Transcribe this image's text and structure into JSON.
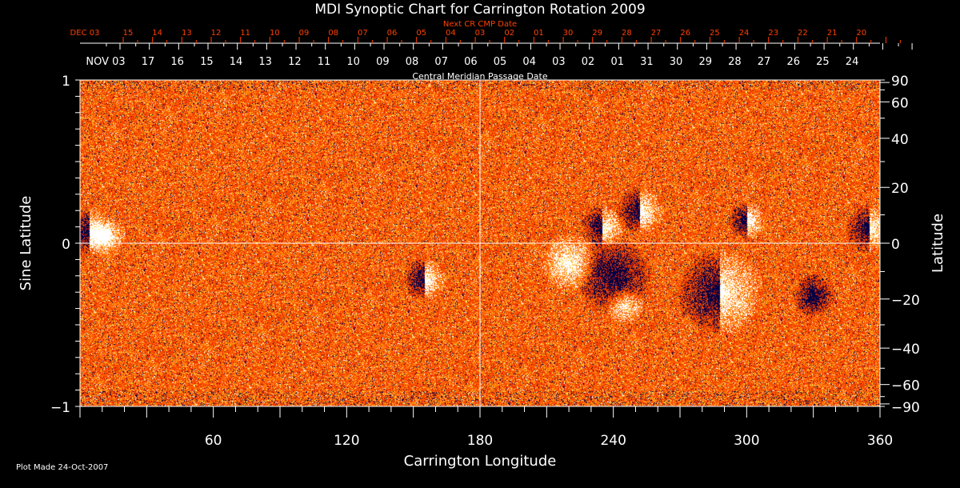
{
  "chart_data": {
    "type": "heatmap",
    "title": "MDI Synoptic Chart for Carrington Rotation 2009",
    "xlabel": "Carrington Longitude",
    "ylabel_left": "Sine Latitude",
    "ylabel_right": "Latitude",
    "top_axis_label": "Central Meridian Passage Date",
    "next_cr_label": "Next CR CMP Date",
    "xlim": [
      0,
      360
    ],
    "ylim": [
      -1,
      1
    ],
    "x_ticks": [
      "60",
      "120",
      "180",
      "240",
      "300",
      "360"
    ],
    "x_tick_values": [
      60,
      120,
      180,
      240,
      300,
      360
    ],
    "y_left_ticks": [
      {
        "v": 1,
        "label": "1"
      },
      {
        "v": 0,
        "label": "0"
      },
      {
        "v": -1,
        "label": "−1"
      }
    ],
    "y_right_ticks": [
      {
        "lat": 90,
        "label": "90"
      },
      {
        "lat": 60,
        "label": "60"
      },
      {
        "lat": 40,
        "label": "40"
      },
      {
        "lat": 20,
        "label": "20"
      },
      {
        "lat": 0,
        "label": "0"
      },
      {
        "lat": -20,
        "label": "−20"
      },
      {
        "lat": -40,
        "label": "−40"
      },
      {
        "lat": -60,
        "label": "−60"
      },
      {
        "lat": -90,
        "label": "−90"
      }
    ],
    "cmp_dates": [
      "NOV 03",
      "17",
      "16",
      "15",
      "14",
      "13",
      "12",
      "11",
      "10",
      "09",
      "08",
      "07",
      "06",
      "05",
      "04",
      "03",
      "02",
      "01",
      "31",
      "30",
      "29",
      "28",
      "27",
      "26",
      "25",
      "24"
    ],
    "next_cr_dates": [
      "DEC 03",
      "15",
      "14",
      "13",
      "12",
      "11",
      "10",
      "09",
      "08",
      "07",
      "06",
      "05",
      "04",
      "03",
      "02",
      "01",
      "30",
      "29",
      "28",
      "27",
      "26",
      "25",
      "24",
      "23",
      "22",
      "21",
      "20"
    ],
    "gridlines": {
      "longitude": 180,
      "sine_latitude": 0
    },
    "colors": {
      "background": "#000000",
      "field": "#ff5a00",
      "positive": "#ffffff",
      "negative": "#000040",
      "next_cr": "#ff4000"
    },
    "features": [
      {
        "lon": 4,
        "sinlat": 0.07,
        "polarity": "mixed",
        "size": 1.0
      },
      {
        "lon": 12,
        "sinlat": 0.04,
        "polarity": "positive",
        "size": 0.8
      },
      {
        "lon": 155,
        "sinlat": -0.22,
        "polarity": "mixed",
        "size": 0.9
      },
      {
        "lon": 235,
        "sinlat": 0.1,
        "polarity": "mixed",
        "size": 0.9
      },
      {
        "lon": 252,
        "sinlat": 0.2,
        "polarity": "mixed",
        "size": 1.0
      },
      {
        "lon": 240,
        "sinlat": -0.2,
        "polarity": "negative",
        "size": 1.6
      },
      {
        "lon": 245,
        "sinlat": -0.38,
        "polarity": "positive",
        "size": 0.8
      },
      {
        "lon": 288,
        "sinlat": -0.3,
        "polarity": "mixed",
        "size": 1.8
      },
      {
        "lon": 300,
        "sinlat": 0.14,
        "polarity": "mixed",
        "size": 0.8
      },
      {
        "lon": 355,
        "sinlat": 0.09,
        "polarity": "mixed",
        "size": 1.0
      },
      {
        "lon": 220,
        "sinlat": -0.12,
        "polarity": "positive",
        "size": 1.2
      },
      {
        "lon": 330,
        "sinlat": -0.32,
        "polarity": "negative",
        "size": 0.9
      }
    ]
  },
  "footer": {
    "plot_made": "Plot Made 24-Oct-2007"
  }
}
